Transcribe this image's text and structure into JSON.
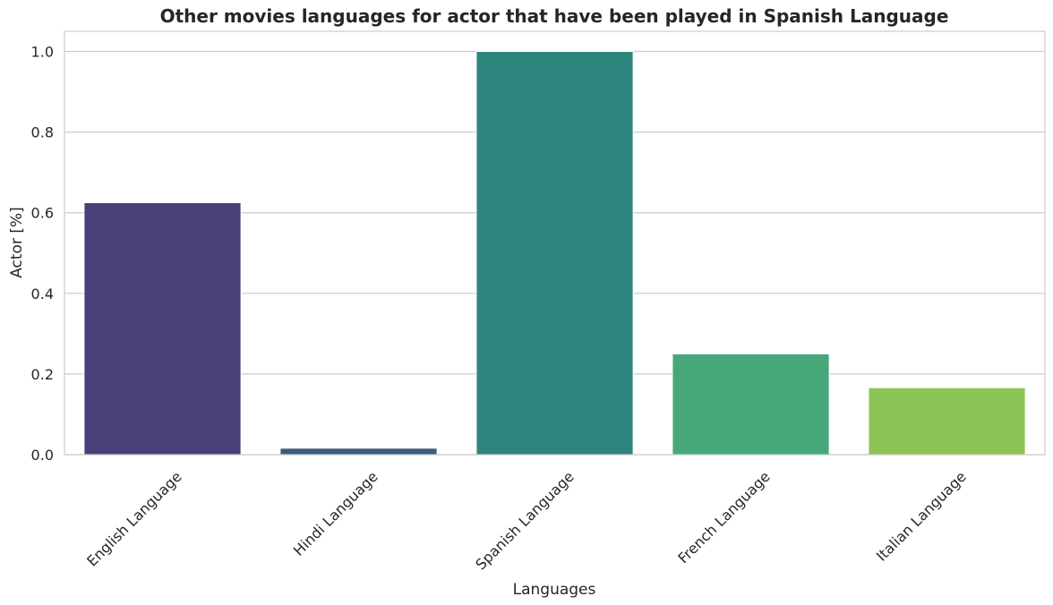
{
  "chart_data": {
    "type": "bar",
    "title": "Other movies languages for actor that have been played in Spanish Language",
    "xlabel": "Languages",
    "ylabel": "Actor [%]",
    "categories": [
      "English Language",
      "Hindi Language",
      "Spanish Language",
      "French Language",
      "Italian Language"
    ],
    "values": [
      0.625,
      0.016,
      1.0,
      0.25,
      0.166
    ],
    "colors": [
      "#4a3f78",
      "#3b5c7a",
      "#2e857e",
      "#46a878",
      "#8dc456"
    ],
    "ylim": [
      0,
      1.05
    ],
    "yticks": [
      "0.0",
      "0.2",
      "0.4",
      "0.6",
      "0.8",
      "1.0"
    ],
    "ytick_values": [
      0,
      0.2,
      0.4,
      0.6,
      0.8,
      1.0
    ],
    "grid": "horizontal",
    "legend": "none"
  }
}
